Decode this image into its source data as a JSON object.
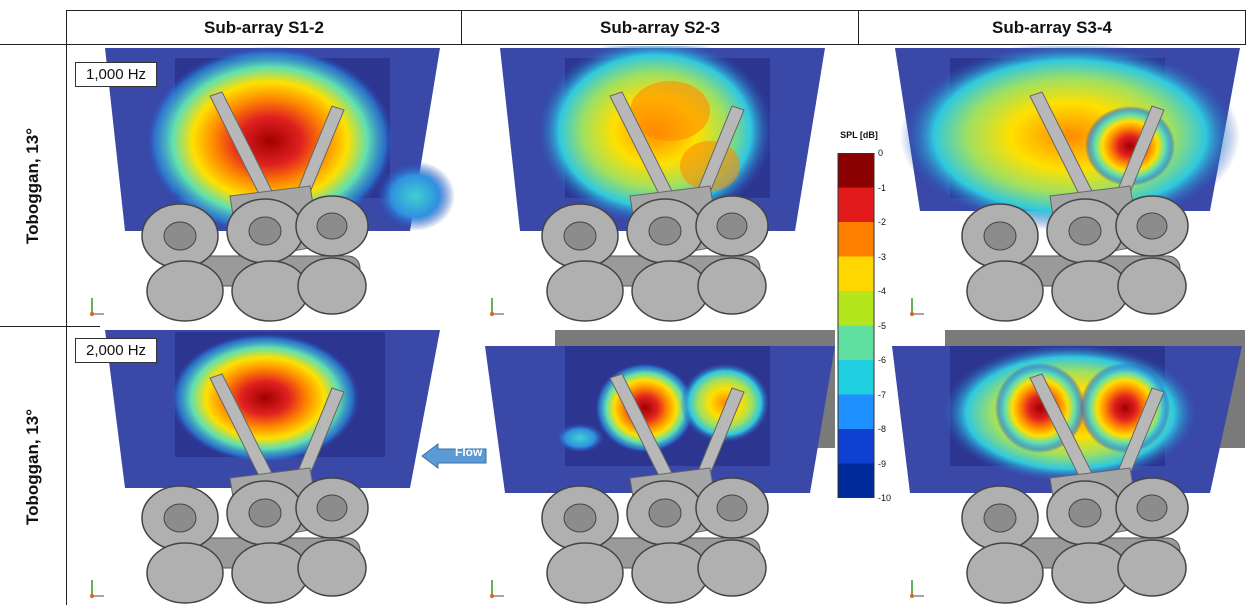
{
  "header": {
    "col1": "Sub-array S1-2",
    "col2": "Sub-array S2-3",
    "col3": "Sub-array S3-4"
  },
  "rows": [
    {
      "label": "Toboggan, 13°",
      "frequency": "1,000 Hz"
    },
    {
      "label": "Toboggan, 13°",
      "frequency": "2,000 Hz"
    }
  ],
  "colorbar": {
    "title": "SPL [dB]",
    "ticks": [
      "0",
      "-1",
      "-2",
      "-3",
      "-4",
      "-5",
      "-6",
      "-7",
      "-8",
      "-9",
      "-10"
    ],
    "colors": [
      "#8b0000",
      "#e31a1c",
      "#ff7f00",
      "#ffd700",
      "#b5e61d",
      "#60e0a0",
      "#20d0e0",
      "#1e90ff",
      "#1040d0",
      "#002a9a"
    ]
  },
  "flow_label": "Flow"
}
